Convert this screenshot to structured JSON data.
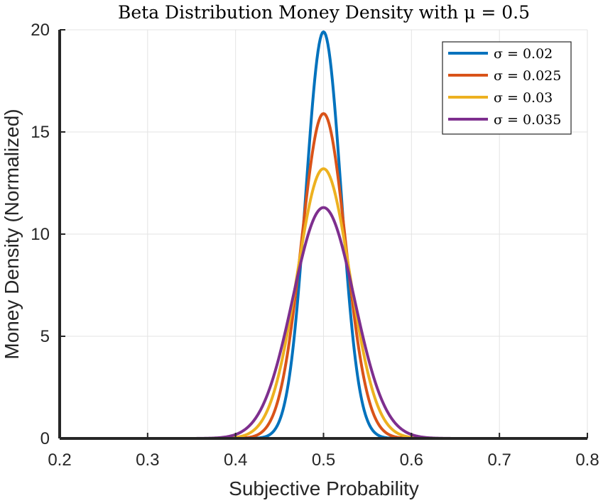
{
  "chart_data": {
    "type": "line",
    "title": "Beta Distribution Money Density with μ = 0.5",
    "xlabel": "Subjective Probability",
    "ylabel": "Money Density (Normalized)",
    "xlim": [
      0.2,
      0.8
    ],
    "ylim": [
      0,
      20
    ],
    "x_ticks": [
      "0.2",
      "0.3",
      "0.4",
      "0.5",
      "0.6",
      "0.7",
      "0.8"
    ],
    "y_ticks": [
      "0",
      "5",
      "10",
      "15",
      "20"
    ],
    "grid": true,
    "legend_position": "top-right",
    "x_domain": [
      0.25,
      0.75
    ],
    "mu": 0.5,
    "series": [
      {
        "name": "σ = 0.02",
        "sigma": 0.02,
        "peak": 19.9,
        "color": "#0072BD"
      },
      {
        "name": "σ = 0.025",
        "sigma": 0.025,
        "peak": 15.9,
        "color": "#D95319"
      },
      {
        "name": "σ = 0.03",
        "sigma": 0.03,
        "peak": 13.2,
        "color": "#EDB120"
      },
      {
        "name": "σ = 0.035",
        "sigma": 0.035,
        "peak": 11.3,
        "color": "#7E2F8E"
      }
    ]
  }
}
